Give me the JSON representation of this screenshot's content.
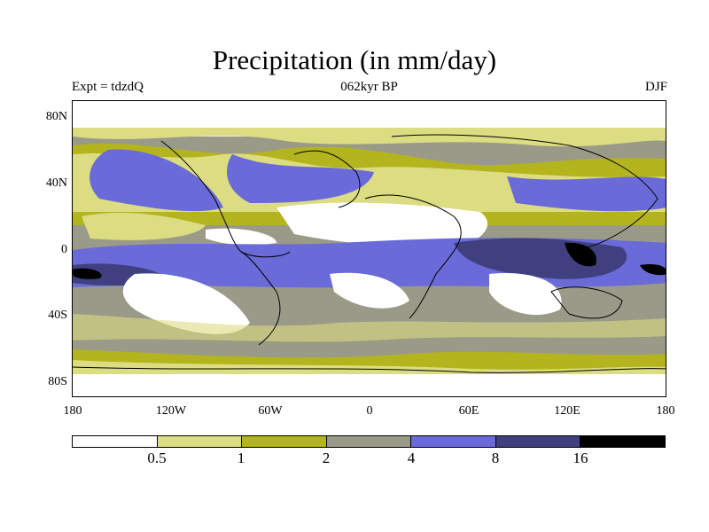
{
  "title": "Precipitation (in mm/day)",
  "experiment": "Expt = tdzdQ",
  "period": "062kyr BP",
  "season": "DJF",
  "lat_labels": [
    "80N",
    "40N",
    "0",
    "40S",
    "80S"
  ],
  "lon_labels": [
    "180",
    "120W",
    "60W",
    "0",
    "60E",
    "120E",
    "180"
  ],
  "colorbar": {
    "levels": [
      "0.5",
      "1",
      "2",
      "4",
      "8",
      "16"
    ],
    "colors": [
      "#ffffff",
      "#dcdc82",
      "#b4b41e",
      "#9a9a88",
      "#6a6ad8",
      "#404080",
      "#000000"
    ]
  }
}
